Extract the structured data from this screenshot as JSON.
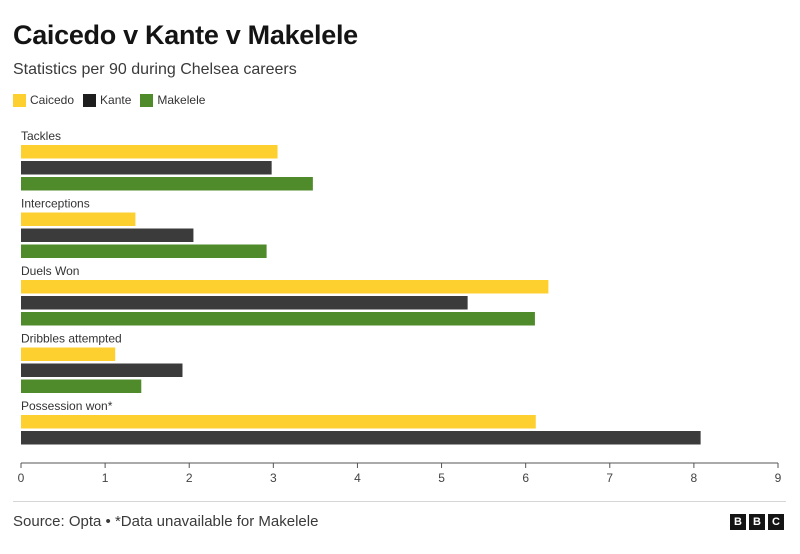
{
  "header": {
    "title": "Caicedo v Kante v Makelele",
    "subtitle": "Statistics per 90 during Chelsea careers"
  },
  "footer": {
    "source": "Source: Opta • *Data unavailable for Makelele",
    "logo_letters": [
      "B",
      "B",
      "C"
    ]
  },
  "chart_data": {
    "type": "bar",
    "orientation": "horizontal",
    "title": "Caicedo v Kante v Makelele",
    "subtitle": "Statistics per 90 during Chelsea careers",
    "categories": [
      "Tackles",
      "Interceptions",
      "Duels Won",
      "Dribbles attempted",
      "Possession won*"
    ],
    "series": [
      {
        "name": "Caicedo",
        "color": "#fdd02f",
        "values": [
          3.05,
          1.36,
          6.27,
          1.12,
          6.12
        ]
      },
      {
        "name": "Kante",
        "color": "#3b3b3b",
        "values": [
          2.98,
          2.05,
          5.31,
          1.92,
          8.08
        ]
      },
      {
        "name": "Makelele",
        "color": "#4f8a2b",
        "values": [
          3.47,
          2.92,
          6.11,
          1.43,
          null
        ]
      }
    ],
    "xlim": [
      0,
      9
    ],
    "xticks": [
      "0",
      "1",
      "2",
      "3",
      "4",
      "5",
      "6",
      "7",
      "8",
      "9"
    ],
    "grid": false,
    "legend_position": "top-left"
  }
}
